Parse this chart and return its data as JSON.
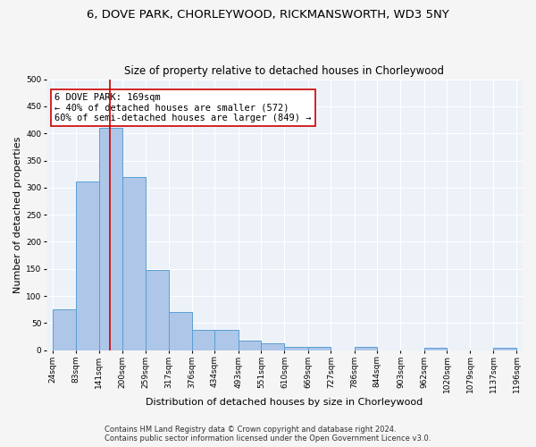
{
  "title_line1": "6, DOVE PARK, CHORLEYWOOD, RICKMANSWORTH, WD3 5NY",
  "title_line2": "Size of property relative to detached houses in Chorleywood",
  "xlabel": "Distribution of detached houses by size in Chorleywood",
  "ylabel": "Number of detached properties",
  "bar_edges": [
    24,
    83,
    141,
    200,
    259,
    317,
    376,
    434,
    493,
    551,
    610,
    669,
    727,
    786,
    844,
    903,
    962,
    1020,
    1079,
    1137,
    1196
  ],
  "bar_heights": [
    75,
    311,
    410,
    320,
    148,
    70,
    37,
    37,
    18,
    12,
    7,
    7,
    0,
    6,
    0,
    0,
    5,
    0,
    0,
    5
  ],
  "bar_color": "#aec6e8",
  "bar_edgecolor": "#5a9fd4",
  "property_size": 169,
  "vline_color": "#cc0000",
  "annotation_text": "6 DOVE PARK: 169sqm\n← 40% of detached houses are smaller (572)\n60% of semi-detached houses are larger (849) →",
  "annotation_box_color": "#ffffff",
  "annotation_box_edgecolor": "#cc0000",
  "ylim": [
    0,
    500
  ],
  "yticks": [
    0,
    50,
    100,
    150,
    200,
    250,
    300,
    350,
    400,
    450,
    500
  ],
  "footer_line1": "Contains HM Land Registry data © Crown copyright and database right 2024.",
  "footer_line2": "Contains public sector information licensed under the Open Government Licence v3.0.",
  "bg_color": "#edf2f9",
  "grid_color": "#ffffff",
  "title_fontsize": 9.5,
  "subtitle_fontsize": 8.5,
  "axis_label_fontsize": 8,
  "tick_fontsize": 6.5,
  "annotation_fontsize": 7.5,
  "footer_fontsize": 6
}
